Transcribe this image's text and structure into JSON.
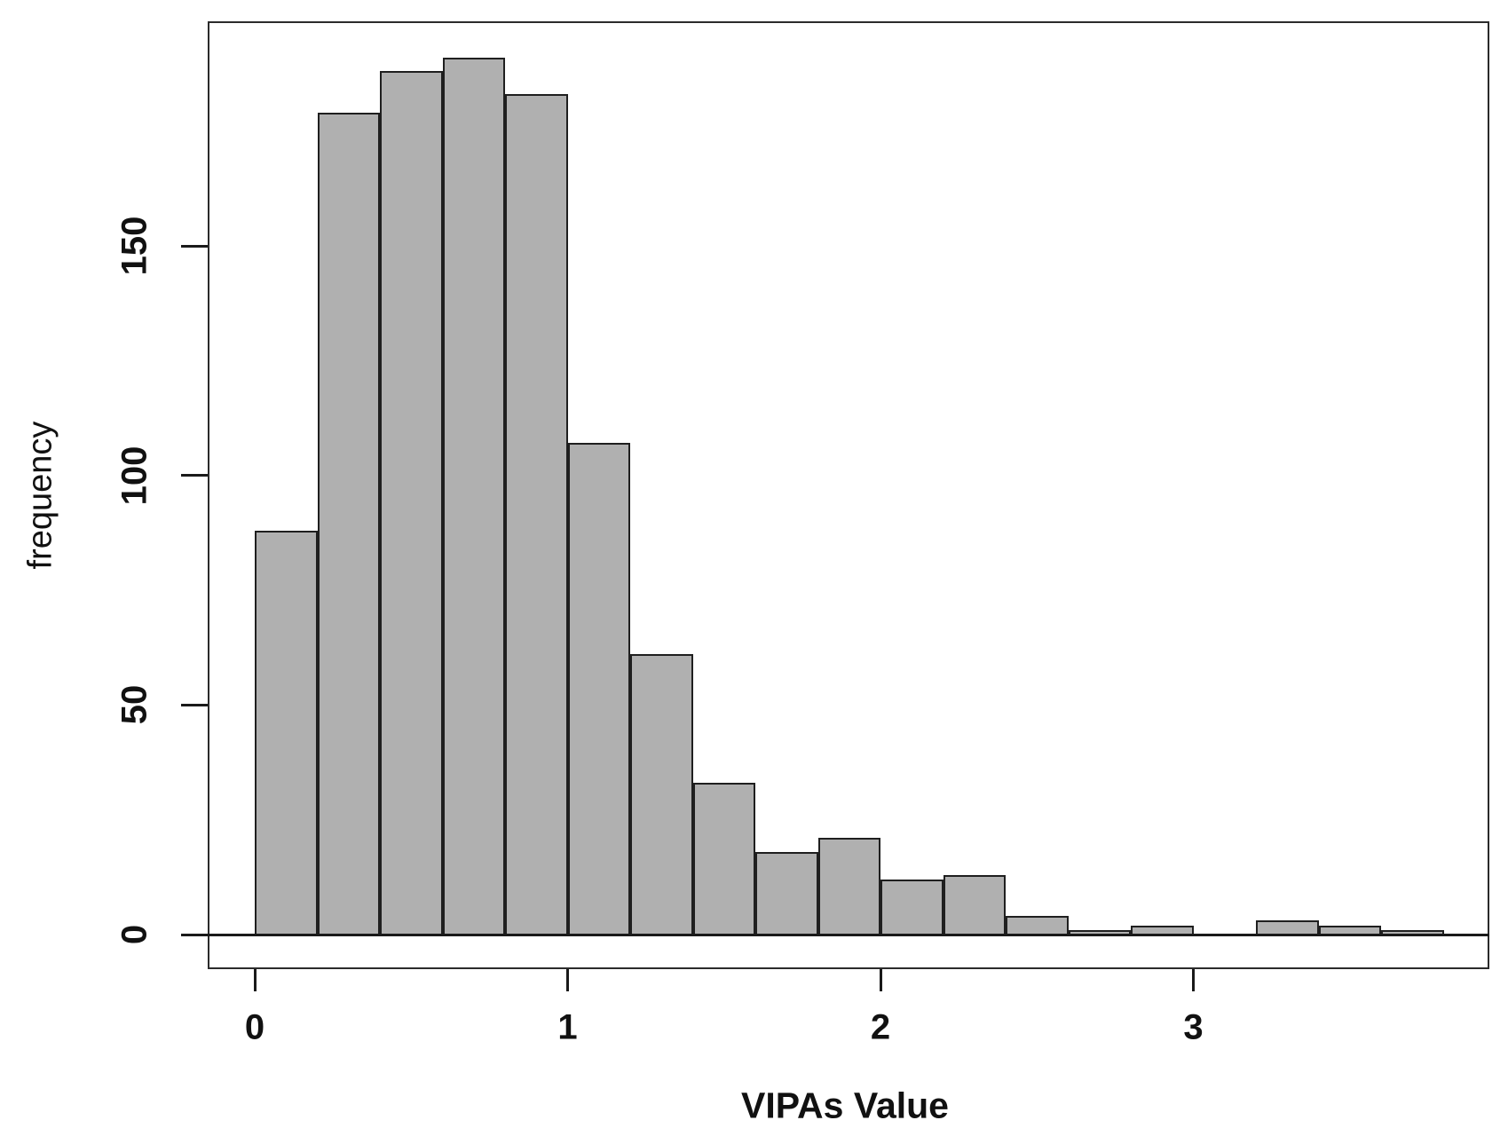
{
  "chart_data": {
    "type": "bar",
    "subtype": "histogram",
    "title": "",
    "xlabel": "VIPAs Value",
    "ylabel": "frequency",
    "bin_edges": [
      0,
      0.2,
      0.4,
      0.6,
      0.8,
      1.0,
      1.2,
      1.4,
      1.6,
      1.8,
      2.0,
      2.2,
      2.4,
      2.6,
      2.8,
      3.0,
      3.2,
      3.4,
      3.6,
      3.8
    ],
    "values": [
      88,
      179,
      188,
      191,
      183,
      107,
      61,
      33,
      18,
      21,
      12,
      13,
      4,
      1,
      2,
      0,
      3,
      2,
      1
    ],
    "x_ticks": [
      0,
      1,
      2,
      3
    ],
    "y_ticks": [
      0,
      50,
      100,
      150
    ],
    "xlim": [
      0,
      3.8
    ],
    "ylim": [
      0,
      191
    ],
    "grid": "off",
    "legend": "none",
    "bar_fill": "#b0b0b0",
    "bar_border": "#1f1f1f",
    "axis_color": "#1a1a1a",
    "background": "#ffffff"
  }
}
